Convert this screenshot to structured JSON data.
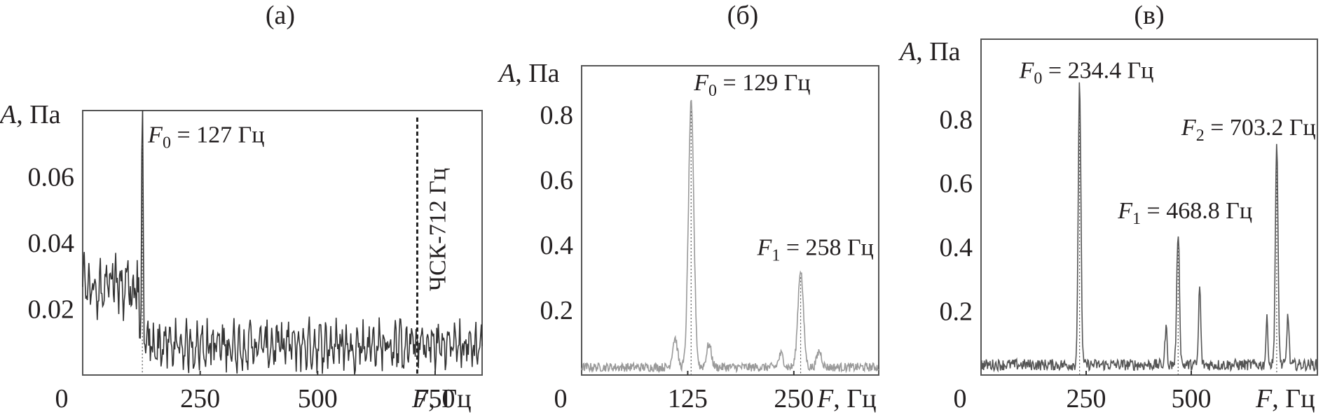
{
  "chart_data": [
    {
      "type": "line",
      "panel_label": "(а)",
      "xlabel_var": "F",
      "xlabel_unit": ", Гц",
      "ylabel_var": "A",
      "ylabel_unit": ", Па",
      "xlim": [
        0,
        850
      ],
      "ylim": [
        0,
        0.08
      ],
      "x_ticks": [
        "0",
        "250",
        "500",
        "750"
      ],
      "x_tick_values": [
        0,
        250,
        500,
        750
      ],
      "y_ticks": [
        "0.02",
        "0.04",
        "0.06"
      ],
      "y_tick_values": [
        0.02,
        0.04,
        0.06
      ],
      "peaks": [
        {
          "x": 127,
          "y": 0.07,
          "label_var": "F",
          "label_sub": "0",
          "label_text": " = 127 Гц"
        }
      ],
      "marker_line": {
        "x": 712,
        "label": "ЧСК-712 Гц"
      },
      "noise_level": 0.01,
      "line_color": "#333333"
    },
    {
      "type": "line",
      "panel_label": "(б)",
      "xlabel_var": "F",
      "xlabel_unit": ", Гц",
      "ylabel_var": "A",
      "ylabel_unit": ", Па",
      "xlim": [
        0,
        350
      ],
      "ylim": [
        0,
        0.95
      ],
      "x_ticks": [
        "0",
        "125",
        "250"
      ],
      "x_tick_values": [
        0,
        125,
        250
      ],
      "y_ticks": [
        "0.2",
        "0.4",
        "0.6",
        "0.8"
      ],
      "y_tick_values": [
        0.2,
        0.4,
        0.6,
        0.8
      ],
      "peaks": [
        {
          "x": 129,
          "y": 0.81,
          "label_var": "F",
          "label_sub": "0",
          "label_text": " = 129 Гц"
        },
        {
          "x": 258,
          "y": 0.3,
          "label_var": "F",
          "label_sub": "1",
          "label_text": " = 258 Гц"
        }
      ],
      "noise_level": 0.03,
      "line_color": "#9a9a9a"
    },
    {
      "type": "line",
      "panel_label": "(в)",
      "xlabel_var": "F",
      "xlabel_unit": ", Гц",
      "ylabel_var": "A",
      "ylabel_unit": ", Па",
      "xlim": [
        0,
        800
      ],
      "ylim": [
        0,
        1.05
      ],
      "x_ticks": [
        "0",
        "250",
        "500"
      ],
      "x_tick_values": [
        0,
        250,
        500
      ],
      "y_ticks": [
        "0.2",
        "0.4",
        "0.6",
        "0.8"
      ],
      "y_tick_values": [
        0.2,
        0.4,
        0.6,
        0.8
      ],
      "peaks": [
        {
          "x": 234.4,
          "y": 0.88,
          "label_var": "F",
          "label_sub": "0",
          "label_text": " = 234.4 Гц"
        },
        {
          "x": 468.8,
          "y": 0.42,
          "label_var": "F",
          "label_sub": "1",
          "label_text": " = 468.8 Гц"
        },
        {
          "x": 703.2,
          "y": 0.68,
          "label_var": "F",
          "label_sub": "2",
          "label_text": " = 703.2 Гц"
        }
      ],
      "noise_level": 0.04,
      "line_color": "#555555"
    }
  ]
}
